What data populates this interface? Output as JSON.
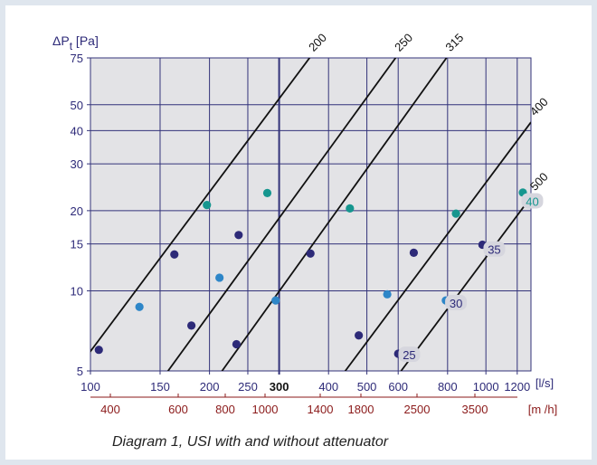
{
  "chart_data": {
    "type": "line",
    "y_axis": {
      "label_main": "ΔP",
      "label_sub": "t",
      "label_unit": "[Pa]",
      "scale": "log",
      "ylim": [
        5,
        75
      ],
      "ticks": [
        5,
        10,
        15,
        20,
        30,
        40,
        50,
        75
      ]
    },
    "x_axis": {
      "label": "[l/s]",
      "scale": "log",
      "xlim": [
        100,
        1300
      ],
      "ticks": [
        100,
        150,
        200,
        250,
        300,
        400,
        500,
        600,
        800,
        1000,
        1200
      ],
      "bold_tick": 300
    },
    "x2_axis": {
      "label": "[m  /h]",
      "ticks": [
        400,
        600,
        800,
        1000,
        1400,
        1800,
        2500,
        3500
      ]
    },
    "grid": true,
    "series": [
      {
        "name": "200",
        "line": [
          [
            90,
            4.8
          ],
          [
            370,
            80
          ]
        ]
      },
      {
        "name": "250",
        "line": [
          [
            154,
            4.8
          ],
          [
            610,
            80
          ]
        ]
      },
      {
        "name": "315",
        "line": [
          [
            211,
            4.8
          ],
          [
            820,
            80
          ]
        ]
      },
      {
        "name": "400",
        "line": [
          [
            432,
            4.8
          ],
          [
            1300,
            43
          ]
        ]
      },
      {
        "name": "500",
        "line": [
          [
            598,
            4.8
          ],
          [
            1300,
            22.5
          ]
        ]
      }
    ],
    "points": [
      {
        "x": 105,
        "y": 6.0,
        "color": "#2d2a78"
      },
      {
        "x": 133,
        "y": 8.7,
        "color": "#2e86c8"
      },
      {
        "x": 163,
        "y": 13.7,
        "color": "#2d2a78"
      },
      {
        "x": 197,
        "y": 21.0,
        "color": "#16968f"
      },
      {
        "x": 180,
        "y": 7.4,
        "color": "#2d2a78"
      },
      {
        "x": 212,
        "y": 11.2,
        "color": "#2e86c8"
      },
      {
        "x": 237,
        "y": 16.2,
        "color": "#2d2a78"
      },
      {
        "x": 280,
        "y": 23.3,
        "color": "#16968f"
      },
      {
        "x": 234,
        "y": 6.3,
        "color": "#2d2a78"
      },
      {
        "x": 294,
        "y": 9.2,
        "color": "#2e86c8"
      },
      {
        "x": 360,
        "y": 13.8,
        "color": "#2d2a78"
      },
      {
        "x": 453,
        "y": 20.4,
        "color": "#16968f"
      },
      {
        "x": 477,
        "y": 6.8,
        "color": "#2d2a78"
      },
      {
        "x": 563,
        "y": 9.7,
        "color": "#2e86c8"
      },
      {
        "x": 657,
        "y": 13.9,
        "color": "#2d2a78"
      },
      {
        "x": 840,
        "y": 19.5,
        "color": "#16968f"
      },
      {
        "x": 600,
        "y": 5.8,
        "color": "#2d2a78"
      },
      {
        "x": 792,
        "y": 9.2,
        "color": "#2e86c8"
      },
      {
        "x": 980,
        "y": 14.9,
        "color": "#2d2a78"
      },
      {
        "x": 1240,
        "y": 23.4,
        "color": "#16968f"
      }
    ],
    "point_labels": [
      {
        "text": "25",
        "x": 640,
        "y": 5.75,
        "color": "#2d2a78"
      },
      {
        "text": "30",
        "x": 840,
        "y": 9.0,
        "color": "#2d2a78"
      },
      {
        "text": "35",
        "x": 1050,
        "y": 14.3,
        "color": "#2d2a78"
      },
      {
        "text": "40",
        "x": 1310,
        "y": 21.7,
        "color": "#16968f"
      }
    ],
    "caption": "Diagram 1, USI with and without attenuator",
    "colors": {
      "plot_bg": "#e3e3e6",
      "grid": "#33337a",
      "line": "#111111",
      "axis_text": "#2d2a78",
      "secondary_axis": "#8b1a1a"
    }
  }
}
